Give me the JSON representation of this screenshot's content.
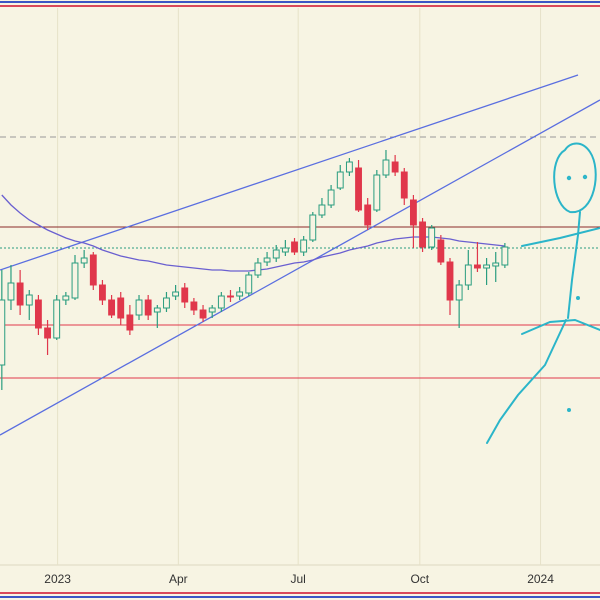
{
  "chart_data": {
    "type": "candlestick",
    "xlim": [
      -0.2,
      65.4
    ],
    "ylim": [
      35,
      592
    ],
    "xticks": [
      {
        "value": 6.1,
        "label": "2023"
      },
      {
        "value": 19.3,
        "label": "Apr"
      },
      {
        "value": 32.4,
        "label": "Jul"
      },
      {
        "value": 45.7,
        "label": "Oct"
      },
      {
        "value": 58.9,
        "label": "2024"
      }
    ],
    "grid": true,
    "up_color": "#2a9d7f",
    "down_color": "#e0374b",
    "open": [
      235,
      300,
      317,
      295,
      300,
      272,
      262,
      300,
      302,
      337,
      345,
      315,
      300,
      302,
      285,
      285,
      300,
      288,
      292,
      304,
      312,
      298,
      290,
      288,
      292,
      304,
      304,
      307,
      325,
      338,
      342,
      348,
      358,
      348,
      360,
      385,
      395,
      412,
      428,
      432,
      395,
      390,
      425,
      438,
      428,
      400,
      378,
      353,
      360,
      338,
      300,
      315,
      335,
      332,
      334,
      335
    ],
    "high": [
      330,
      335,
      330,
      310,
      305,
      280,
      305,
      308,
      345,
      350,
      348,
      320,
      305,
      308,
      295,
      305,
      305,
      295,
      308,
      315,
      317,
      302,
      295,
      295,
      308,
      310,
      313,
      328,
      342,
      348,
      355,
      360,
      362,
      364,
      388,
      402,
      415,
      435,
      442,
      440,
      402,
      430,
      450,
      445,
      432,
      405,
      382,
      375,
      365,
      342,
      320,
      350,
      358,
      342,
      348,
      357
    ],
    "low": [
      210,
      290,
      285,
      280,
      265,
      245,
      260,
      295,
      300,
      332,
      310,
      295,
      282,
      275,
      265,
      280,
      280,
      272,
      288,
      300,
      292,
      285,
      278,
      282,
      288,
      298,
      300,
      304,
      322,
      334,
      338,
      344,
      345,
      344,
      358,
      382,
      392,
      410,
      424,
      388,
      370,
      388,
      422,
      424,
      395,
      352,
      348,
      350,
      335,
      285,
      272,
      310,
      328,
      315,
      318,
      332
    ],
    "close": [
      300,
      317,
      295,
      305,
      272,
      262,
      300,
      304,
      337,
      342,
      315,
      300,
      285,
      282,
      270,
      300,
      285,
      292,
      302,
      308,
      298,
      290,
      282,
      292,
      304,
      303,
      308,
      325,
      337,
      342,
      350,
      352,
      348,
      360,
      385,
      395,
      410,
      428,
      438,
      390,
      375,
      425,
      440,
      428,
      402,
      375,
      353,
      372,
      338,
      300,
      315,
      335,
      332,
      335,
      337,
      353
    ],
    "ma": {
      "color": "#6a5fd0",
      "values": [
        405,
        395,
        387,
        380,
        375,
        370,
        366,
        362,
        359,
        357,
        354,
        350,
        347,
        344,
        342,
        340,
        339,
        337,
        335,
        334,
        333,
        332,
        331,
        330,
        330,
        329,
        329,
        329,
        330,
        331,
        333,
        335,
        337,
        338,
        340,
        343,
        345,
        347,
        350,
        352,
        354,
        357,
        359,
        361,
        362,
        363,
        363,
        363,
        362,
        361,
        359,
        358,
        357,
        356,
        355,
        354
      ]
    },
    "levels": [
      {
        "value": 463,
        "color": "#999999",
        "style": "dashed"
      },
      {
        "value": 373,
        "color": "#8b2a2a",
        "style": "solid"
      },
      {
        "value": 352,
        "color": "#2a9d7f",
        "style": "dotted"
      },
      {
        "value": 275,
        "color": "#e0374b",
        "style": "solid"
      },
      {
        "value": 222,
        "color": "#e0374b",
        "style": "solid"
      }
    ]
  }
}
